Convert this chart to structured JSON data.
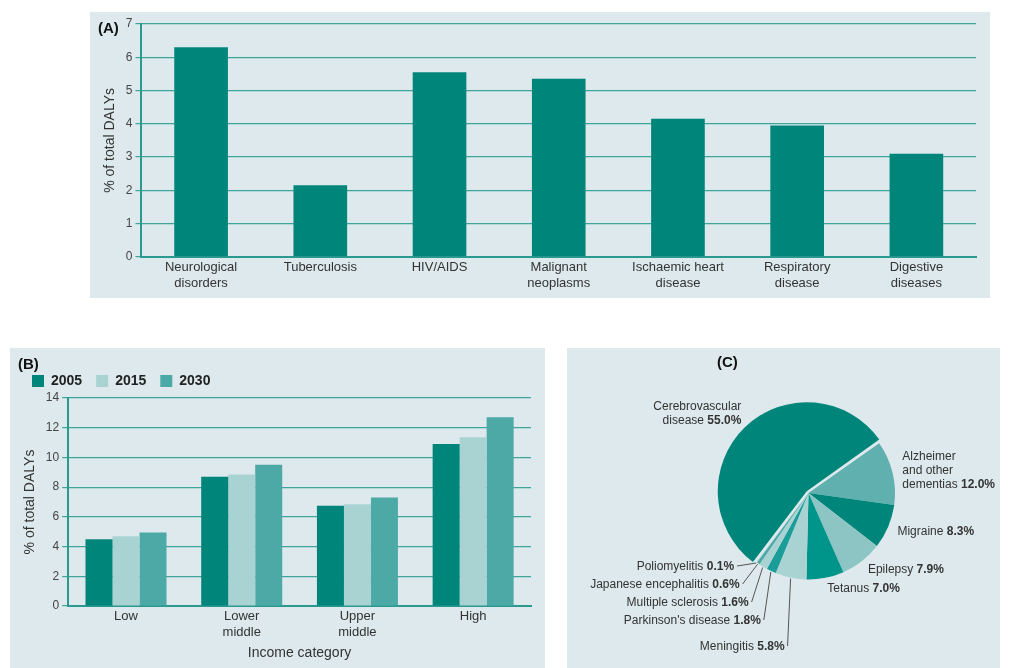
{
  "chart_data": [
    {
      "type": "bar",
      "title": "(A)",
      "ylabel": "% of total DALYs",
      "categories": [
        "Neurological disorders",
        "Tuberculosis",
        "HIV/AIDS",
        "Malignant neoplasms",
        "Ischaemic heart disease",
        "Respiratory disease",
        "Digestive diseases"
      ],
      "values": [
        6.3,
        2.15,
        5.55,
        5.35,
        4.15,
        3.95,
        3.1
      ],
      "color": "#00857a",
      "ylim": [
        0,
        7
      ],
      "yticks": [
        0,
        1,
        2,
        3,
        4,
        5,
        6,
        7
      ],
      "grid": "y",
      "legend": false
    },
    {
      "type": "bar",
      "title": "(B)",
      "ylabel": "% of total DALYs",
      "xlabel": "Income category",
      "categories": [
        "Low",
        "Lower middle",
        "Upper middle",
        "High"
      ],
      "series": [
        {
          "name": "2005",
          "color": "#00857a",
          "values": [
            4.5,
            8.7,
            6.75,
            10.9
          ]
        },
        {
          "name": "2015",
          "color": "#a9d3d3",
          "values": [
            4.7,
            8.85,
            6.85,
            11.35
          ]
        },
        {
          "name": "2030",
          "color": "#4ca9a6",
          "values": [
            4.95,
            9.5,
            7.3,
            12.7
          ]
        }
      ],
      "ylim": [
        0,
        14
      ],
      "yticks": [
        0,
        2,
        4,
        6,
        8,
        10,
        12,
        14
      ],
      "grid": "y",
      "legend": "top left"
    },
    {
      "type": "pie",
      "title": "(C)",
      "categories": [
        "Cerebrovascular disease",
        "Alzheimer and other dementias",
        "Migraine",
        "Epilepsy",
        "Tetanus",
        "Meningitis",
        "Parkinson's disease",
        "Multiple sclerosis",
        "Japanese encephalitis",
        "Poliomyelitis"
      ],
      "values": [
        55.0,
        12.0,
        8.3,
        7.9,
        7.0,
        5.8,
        1.8,
        1.6,
        0.6,
        0.1
      ],
      "value_labels": [
        "55.0%",
        "12.0%",
        "8.3%",
        "7.9%",
        "7.0%",
        "5.8%",
        "1.8%",
        "1.6%",
        "0.6%",
        "0.1%"
      ],
      "colors": [
        "#00857a",
        "#5fb0ae",
        "#00857a",
        "#8cc5c3",
        "#00958a",
        "#a9d3d3",
        "#1a9c98",
        "#a9d3d3",
        "#4ca9a6",
        "#a9d3d3"
      ],
      "legend": false
    }
  ]
}
